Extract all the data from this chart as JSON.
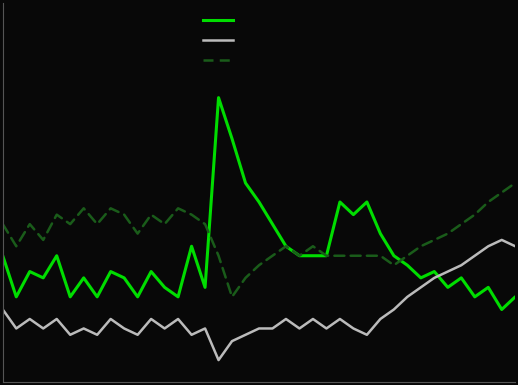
{
  "background_color": "#080808",
  "plot_bg_color": "#080808",
  "line_bright_green_color": "#00dd00",
  "line_gray_color": "#bbbbbb",
  "line_dark_green_color": "#1a5c1a",
  "axes_color": "#555555",
  "solid_green": [
    5.5,
    4.2,
    5.0,
    4.8,
    5.5,
    4.2,
    4.8,
    4.2,
    5.0,
    4.8,
    4.2,
    5.0,
    4.5,
    4.2,
    5.8,
    4.5,
    10.5,
    9.2,
    7.8,
    7.2,
    6.5,
    5.8,
    5.5,
    5.5,
    5.5,
    7.2,
    6.8,
    7.2,
    6.2,
    5.5,
    5.2,
    4.8,
    5.0,
    4.5,
    4.8,
    4.2,
    4.5,
    3.8,
    4.2
  ],
  "solid_gray": [
    3.8,
    3.2,
    3.5,
    3.2,
    3.5,
    3.0,
    3.2,
    3.0,
    3.5,
    3.2,
    3.0,
    3.5,
    3.2,
    3.5,
    3.0,
    3.2,
    2.2,
    2.8,
    3.0,
    3.2,
    3.2,
    3.5,
    3.2,
    3.5,
    3.2,
    3.5,
    3.2,
    3.0,
    3.5,
    3.8,
    4.2,
    4.5,
    4.8,
    5.0,
    5.2,
    5.5,
    5.8,
    6.0,
    5.8
  ],
  "dashed_green": [
    6.5,
    5.8,
    6.5,
    6.0,
    6.8,
    6.5,
    7.0,
    6.5,
    7.0,
    6.8,
    6.2,
    6.8,
    6.5,
    7.0,
    6.8,
    6.5,
    5.5,
    4.2,
    4.8,
    5.2,
    5.5,
    5.8,
    5.5,
    5.8,
    5.5,
    5.5,
    5.5,
    5.5,
    5.5,
    5.2,
    5.5,
    5.8,
    6.0,
    6.2,
    6.5,
    6.8,
    7.2,
    7.5,
    7.8
  ]
}
